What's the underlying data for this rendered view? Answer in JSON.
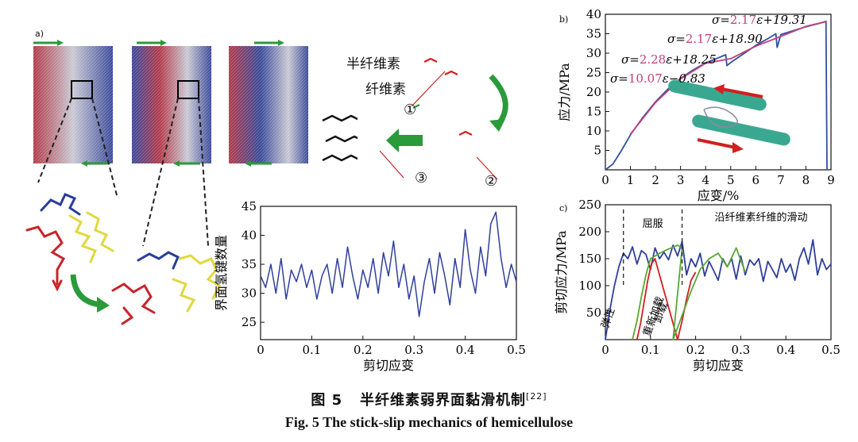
{
  "panel_a": {
    "label": "a)",
    "hemicellulose_label": "半纤维素",
    "cellulose_label": "纤维素",
    "step_markers": [
      "①",
      "②",
      "③"
    ]
  },
  "caption": {
    "cn_prefix": "图 5",
    "cn_text": "半纤维素弱界面黏滑机制",
    "ref": "[22]",
    "en": "Fig. 5   The stick-slip mechanics of hemicellulose"
  },
  "chart_data": [
    {
      "id": "a-hbond",
      "type": "line",
      "xlabel": "剪切应变",
      "ylabel": "界面氢键数量",
      "xlim": [
        0,
        0.5
      ],
      "ylim": [
        22,
        45
      ],
      "xticks": [
        "0",
        "0.1",
        "0.2",
        "0.3",
        "0.4",
        "0.5"
      ],
      "yticks": [
        "25",
        "30",
        "35",
        "40",
        "45"
      ],
      "color": "#2f3f9a",
      "series": [
        {
          "name": "hbonds",
          "x": [
            0,
            0.01,
            0.02,
            0.03,
            0.04,
            0.05,
            0.06,
            0.07,
            0.08,
            0.09,
            0.1,
            0.11,
            0.12,
            0.13,
            0.14,
            0.15,
            0.16,
            0.17,
            0.18,
            0.19,
            0.2,
            0.21,
            0.22,
            0.23,
            0.24,
            0.25,
            0.26,
            0.27,
            0.28,
            0.29,
            0.3,
            0.31,
            0.32,
            0.33,
            0.34,
            0.35,
            0.36,
            0.37,
            0.38,
            0.39,
            0.4,
            0.41,
            0.42,
            0.43,
            0.44,
            0.45,
            0.46,
            0.47,
            0.48,
            0.49,
            0.5
          ],
          "y": [
            33,
            31,
            35,
            30,
            36,
            29,
            34,
            32,
            35,
            31,
            34,
            29,
            33,
            35,
            30,
            36,
            31,
            38,
            33,
            29,
            34,
            31,
            36,
            30,
            37,
            33,
            39,
            31,
            35,
            29,
            33,
            26,
            32,
            36,
            30,
            37,
            33,
            28,
            36,
            31,
            41,
            34,
            30,
            38,
            33,
            42,
            44,
            36,
            31,
            35,
            32
          ]
        }
      ]
    },
    {
      "id": "b-stress-strain",
      "type": "line",
      "panel_label": "b)",
      "xlabel": "应变/%",
      "ylabel": "应力/MPa",
      "xlim": [
        0,
        9
      ],
      "ylim": [
        0,
        40
      ],
      "xticks": [
        "0",
        "1",
        "2",
        "3",
        "4",
        "5",
        "6",
        "7",
        "8",
        "9"
      ],
      "yticks": [
        "5",
        "10",
        "15",
        "20",
        "25",
        "30",
        "35",
        "40"
      ],
      "series": [
        {
          "name": "simulation",
          "color": "#2f4f9f",
          "x": [
            0,
            0.3,
            0.6,
            1.0,
            1.5,
            2.0,
            2.5,
            3.0,
            3.5,
            4.0,
            4.5,
            4.8,
            4.85,
            5.0,
            5.5,
            6.0,
            6.5,
            6.8,
            6.85,
            7.0,
            7.5,
            8.0,
            8.5,
            8.8,
            8.82,
            8.84
          ],
          "y": [
            0,
            1.5,
            4.5,
            9,
            13.5,
            17.5,
            20.8,
            23.5,
            25.7,
            27.5,
            28.8,
            29.6,
            26.8,
            27.6,
            29.8,
            32.0,
            33.8,
            35.0,
            31.5,
            34.8,
            35.8,
            36.8,
            37.6,
            38.2,
            20,
            0
          ]
        },
        {
          "name": "fit",
          "color": "#c0407a",
          "x": [
            1.0,
            2.0,
            3.0,
            4.0,
            5.0,
            6.0,
            7.0,
            8.0,
            8.8
          ],
          "y": [
            9.2,
            17.3,
            23.4,
            27.4,
            28.6,
            31.8,
            34.3,
            36.9,
            38.1
          ]
        }
      ],
      "annotations": [
        {
          "prefix": "σ=",
          "coef": "2.17",
          "rest": "ε+19.31"
        },
        {
          "prefix": "σ=",
          "coef": "2.17",
          "rest": "ε+18.90"
        },
        {
          "prefix": "σ=",
          "coef": "2.28",
          "rest": "ε+18.25"
        },
        {
          "prefix": "σ=",
          "coef": "10.07",
          "rest": "ε−0.83"
        }
      ]
    },
    {
      "id": "c-shear",
      "type": "line",
      "panel_label": "c)",
      "xlabel": "剪切应变",
      "ylabel": "剪切应力/MPa",
      "xlim": [
        0,
        0.5
      ],
      "ylim": [
        0,
        250
      ],
      "xticks": [
        "0",
        "0.1",
        "0.2",
        "0.3",
        "0.4",
        "0.5"
      ],
      "yticks": [
        "50",
        "100",
        "150",
        "200",
        "250"
      ],
      "annotations": {
        "yield": "屈服",
        "slide": "沿纤维素纤维的滑动",
        "elastic": "弹性",
        "reload": "重新加载",
        "unload": "卸载"
      },
      "series": [
        {
          "name": "loading",
          "color": "#2f3f9a",
          "x": [
            0,
            0.01,
            0.02,
            0.03,
            0.04,
            0.05,
            0.06,
            0.07,
            0.08,
            0.09,
            0.1,
            0.11,
            0.12,
            0.13,
            0.14,
            0.15,
            0.16,
            0.17,
            0.18,
            0.19,
            0.2,
            0.21,
            0.22,
            0.23,
            0.24,
            0.25,
            0.26,
            0.27,
            0.28,
            0.29,
            0.3,
            0.31,
            0.32,
            0.33,
            0.34,
            0.35,
            0.36,
            0.37,
            0.38,
            0.39,
            0.4,
            0.41,
            0.42,
            0.43,
            0.44,
            0.45,
            0.46,
            0.47,
            0.48,
            0.49,
            0.5
          ],
          "y": [
            0,
            55,
            100,
            135,
            160,
            150,
            172,
            140,
            165,
            158,
            130,
            170,
            150,
            162,
            148,
            175,
            155,
            182,
            120,
            150,
            135,
            160,
            118,
            145,
            128,
            110,
            150,
            135,
            150,
            112,
            155,
            120,
            148,
            138,
            150,
            108,
            145,
            130,
            115,
            150,
            125,
            140,
            110,
            150,
            170,
            140,
            185,
            120,
            150,
            130,
            140
          ]
        },
        {
          "name": "unloading",
          "color": "#d02020",
          "x": [
            0.07,
            0.078,
            0.086,
            0.094,
            0.102,
            0.11,
            0.16,
            0.17,
            0.18,
            0.19,
            0.2
          ],
          "y": [
            0,
            30,
            70,
            110,
            140,
            150,
            0,
            35,
            75,
            110,
            125
          ]
        },
        {
          "name": "reloading",
          "color": "#5aa832",
          "x": [
            0.06,
            0.07,
            0.08,
            0.09,
            0.1,
            0.12,
            0.14,
            0.16,
            0.17,
            0.15,
            0.17,
            0.19,
            0.21,
            0.23,
            0.25,
            0.27,
            0.29,
            0.31
          ],
          "y": [
            0,
            35,
            80,
            120,
            150,
            160,
            168,
            175,
            170,
            0,
            45,
            90,
            130,
            150,
            160,
            135,
            170,
            125
          ]
        }
      ]
    }
  ]
}
